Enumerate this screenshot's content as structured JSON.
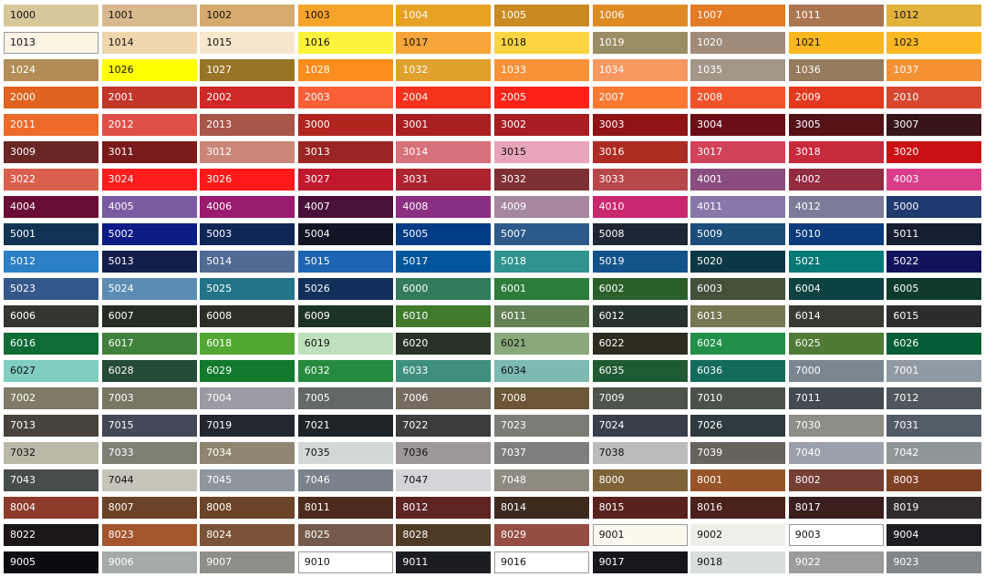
{
  "swatches": [
    {
      "code": "1000",
      "color": "#d6c89a",
      "text": "#111"
    },
    {
      "code": "1001",
      "color": "#d7b98d",
      "text": "#111"
    },
    {
      "code": "1002",
      "color": "#d5ab6c",
      "text": "#111"
    },
    {
      "code": "1003",
      "color": "#f6a32a",
      "text": "#111"
    },
    {
      "code": "1004",
      "color": "#e7a125",
      "text": "#fff"
    },
    {
      "code": "1005",
      "color": "#c98b22",
      "text": "#fff"
    },
    {
      "code": "1006",
      "color": "#e08a26",
      "text": "#fff"
    },
    {
      "code": "1007",
      "color": "#e27b24",
      "text": "#fff"
    },
    {
      "code": "1011",
      "color": "#a97650",
      "text": "#fff"
    },
    {
      "code": "1012",
      "color": "#e2b23b",
      "text": "#111"
    },
    {
      "code": "1013",
      "color": "#fbf4e4",
      "text": "#111",
      "border": true
    },
    {
      "code": "1014",
      "color": "#efd6ad",
      "text": "#111"
    },
    {
      "code": "1015",
      "color": "#f7e7cc",
      "text": "#111"
    },
    {
      "code": "1016",
      "color": "#fcf23e",
      "text": "#111"
    },
    {
      "code": "1017",
      "color": "#f6a53a",
      "text": "#111"
    },
    {
      "code": "1018",
      "color": "#fad443",
      "text": "#111"
    },
    {
      "code": "1019",
      "color": "#9a8d64",
      "text": "#fff"
    },
    {
      "code": "1020",
      "color": "#a08a79",
      "text": "#fff"
    },
    {
      "code": "1021",
      "color": "#fbb71f",
      "text": "#111"
    },
    {
      "code": "1023",
      "color": "#fbb823",
      "text": "#111"
    },
    {
      "code": "1024",
      "color": "#b38d55",
      "text": "#fff"
    },
    {
      "code": "1026",
      "color": "#ffff00",
      "text": "#111"
    },
    {
      "code": "1027",
      "color": "#987526",
      "text": "#fff"
    },
    {
      "code": "1028",
      "color": "#fb8d1c",
      "text": "#fff"
    },
    {
      "code": "1032",
      "color": "#e0a12c",
      "text": "#fff"
    },
    {
      "code": "1033",
      "color": "#f99138",
      "text": "#fff"
    },
    {
      "code": "1034",
      "color": "#f89861",
      "text": "#fff"
    },
    {
      "code": "1035",
      "color": "#a3978a",
      "text": "#fff"
    },
    {
      "code": "1036",
      "color": "#957a5c",
      "text": "#fff"
    },
    {
      "code": "1037",
      "color": "#f59133",
      "text": "#fff"
    },
    {
      "code": "2000",
      "color": "#e0631f",
      "text": "#fff"
    },
    {
      "code": "2001",
      "color": "#c2372a",
      "text": "#fff"
    },
    {
      "code": "2002",
      "color": "#cf2626",
      "text": "#fff"
    },
    {
      "code": "2003",
      "color": "#fa5f38",
      "text": "#fff"
    },
    {
      "code": "2004",
      "color": "#f5331c",
      "text": "#fff"
    },
    {
      "code": "2005",
      "color": "#fe2318",
      "text": "#fff"
    },
    {
      "code": "2007",
      "color": "#fd7932",
      "text": "#fff"
    },
    {
      "code": "2008",
      "color": "#f3532a",
      "text": "#fff"
    },
    {
      "code": "2009",
      "color": "#e3391f",
      "text": "#fff"
    },
    {
      "code": "2010",
      "color": "#d7472f",
      "text": "#fff"
    },
    {
      "code": "2011",
      "color": "#ee6a2b",
      "text": "#fff"
    },
    {
      "code": "2012",
      "color": "#df5049",
      "text": "#fff"
    },
    {
      "code": "2013",
      "color": "#a8554a",
      "text": "#fff"
    },
    {
      "code": "3000",
      "color": "#b12520",
      "text": "#fff"
    },
    {
      "code": "3001",
      "color": "#a81f22",
      "text": "#fff"
    },
    {
      "code": "3002",
      "color": "#a81d22",
      "text": "#fff"
    },
    {
      "code": "3003",
      "color": "#8e1416",
      "text": "#fff"
    },
    {
      "code": "3004",
      "color": "#6c0e18",
      "text": "#fff"
    },
    {
      "code": "3005",
      "color": "#561219",
      "text": "#fff"
    },
    {
      "code": "3007",
      "color": "#361417",
      "text": "#fff"
    },
    {
      "code": "3009",
      "color": "#6a2525",
      "text": "#fff"
    },
    {
      "code": "3011",
      "color": "#7b1a1b",
      "text": "#fff"
    },
    {
      "code": "3012",
      "color": "#ca8779",
      "text": "#fff"
    },
    {
      "code": "3013",
      "color": "#9a2522",
      "text": "#fff"
    },
    {
      "code": "3014",
      "color": "#d6707a",
      "text": "#fff"
    },
    {
      "code": "3015",
      "color": "#e8a4b8",
      "text": "#111"
    },
    {
      "code": "3016",
      "color": "#ad2b22",
      "text": "#fff"
    },
    {
      "code": "3017",
      "color": "#d14359",
      "text": "#fff"
    },
    {
      "code": "3018",
      "color": "#c72a3c",
      "text": "#fff"
    },
    {
      "code": "3020",
      "color": "#c91115",
      "text": "#fff"
    },
    {
      "code": "3022",
      "color": "#da5f4f",
      "text": "#fff"
    },
    {
      "code": "3024",
      "color": "#ff1d1d",
      "text": "#fff"
    },
    {
      "code": "3026",
      "color": "#ff1818",
      "text": "#fff"
    },
    {
      "code": "3027",
      "color": "#c1182e",
      "text": "#fff"
    },
    {
      "code": "3031",
      "color": "#ab2430",
      "text": "#fff"
    },
    {
      "code": "3032",
      "color": "#7e2f33",
      "text": "#fff"
    },
    {
      "code": "3033",
      "color": "#b7474a",
      "text": "#fff"
    },
    {
      "code": "4001",
      "color": "#8a4d7f",
      "text": "#fff"
    },
    {
      "code": "4002",
      "color": "#922c40",
      "text": "#fff"
    },
    {
      "code": "4003",
      "color": "#da3d89",
      "text": "#fff"
    },
    {
      "code": "4004",
      "color": "#6a0d34",
      "text": "#fff"
    },
    {
      "code": "4005",
      "color": "#7a5aa0",
      "text": "#fff"
    },
    {
      "code": "4006",
      "color": "#991a6e",
      "text": "#fff"
    },
    {
      "code": "4007",
      "color": "#49103b",
      "text": "#fff"
    },
    {
      "code": "4008",
      "color": "#8b2f82",
      "text": "#fff"
    },
    {
      "code": "4009",
      "color": "#a587a0",
      "text": "#fff"
    },
    {
      "code": "4010",
      "color": "#c7286e",
      "text": "#fff"
    },
    {
      "code": "4011",
      "color": "#8877a9",
      "text": "#fff"
    },
    {
      "code": "4012",
      "color": "#7c7c98",
      "text": "#fff"
    },
    {
      "code": "5000",
      "color": "#1f3a6e",
      "text": "#fff"
    },
    {
      "code": "5001",
      "color": "#123454",
      "text": "#fff"
    },
    {
      "code": "5002",
      "color": "#0d1b87",
      "text": "#fff"
    },
    {
      "code": "5003",
      "color": "#102756",
      "text": "#fff"
    },
    {
      "code": "5004",
      "color": "#131524",
      "text": "#fff"
    },
    {
      "code": "5005",
      "color": "#023b86",
      "text": "#fff"
    },
    {
      "code": "5007",
      "color": "#2e5a8b",
      "text": "#fff"
    },
    {
      "code": "5008",
      "color": "#1d2733",
      "text": "#fff"
    },
    {
      "code": "5009",
      "color": "#1b4d79",
      "text": "#fff"
    },
    {
      "code": "5010",
      "color": "#0b3b7c",
      "text": "#fff"
    },
    {
      "code": "5011",
      "color": "#161e31",
      "text": "#fff"
    },
    {
      "code": "5012",
      "color": "#2a7fc5",
      "text": "#fff"
    },
    {
      "code": "5013",
      "color": "#141e4c",
      "text": "#fff"
    },
    {
      "code": "5014",
      "color": "#516a94",
      "text": "#fff"
    },
    {
      "code": "5015",
      "color": "#1d65b2",
      "text": "#fff"
    },
    {
      "code": "5017",
      "color": "#00559b",
      "text": "#fff"
    },
    {
      "code": "5018",
      "color": "#30948c",
      "text": "#fff"
    },
    {
      "code": "5019",
      "color": "#11538a",
      "text": "#fff"
    },
    {
      "code": "5020",
      "color": "#0b3844",
      "text": "#fff"
    },
    {
      "code": "5021",
      "color": "#057a76",
      "text": "#fff"
    },
    {
      "code": "5022",
      "color": "#11125c",
      "text": "#fff"
    },
    {
      "code": "5023",
      "color": "#345889",
      "text": "#fff"
    },
    {
      "code": "5024",
      "color": "#5b8cb4",
      "text": "#fff"
    },
    {
      "code": "5025",
      "color": "#227488",
      "text": "#fff"
    },
    {
      "code": "5026",
      "color": "#13305a",
      "text": "#fff"
    },
    {
      "code": "6000",
      "color": "#327c5c",
      "text": "#fff"
    },
    {
      "code": "6001",
      "color": "#2c7c3a",
      "text": "#fff"
    },
    {
      "code": "6002",
      "color": "#2a5f2a",
      "text": "#fff"
    },
    {
      "code": "6003",
      "color": "#43503a",
      "text": "#fff"
    },
    {
      "code": "6004",
      "color": "#0d4240",
      "text": "#fff"
    },
    {
      "code": "6005",
      "color": "#0e3a2c",
      "text": "#fff"
    },
    {
      "code": "6006",
      "color": "#323530",
      "text": "#fff"
    },
    {
      "code": "6007",
      "color": "#242e22",
      "text": "#fff"
    },
    {
      "code": "6008",
      "color": "#2d2e25",
      "text": "#fff"
    },
    {
      "code": "6009",
      "color": "#1d3325",
      "text": "#fff"
    },
    {
      "code": "6010",
      "color": "#3f7a2d",
      "text": "#fff"
    },
    {
      "code": "6011",
      "color": "#638055",
      "text": "#fff"
    },
    {
      "code": "6012",
      "color": "#26322f",
      "text": "#fff"
    },
    {
      "code": "6013",
      "color": "#767652",
      "text": "#fff"
    },
    {
      "code": "6014",
      "color": "#393a31",
      "text": "#fff"
    },
    {
      "code": "6015",
      "color": "#2b2d2a",
      "text": "#fff"
    },
    {
      "code": "6016",
      "color": "#0e6c37",
      "text": "#fff"
    },
    {
      "code": "6017",
      "color": "#40813b",
      "text": "#fff"
    },
    {
      "code": "6018",
      "color": "#53a834",
      "text": "#fff"
    },
    {
      "code": "6019",
      "color": "#bfe0be",
      "text": "#111"
    },
    {
      "code": "6020",
      "color": "#283328",
      "text": "#fff"
    },
    {
      "code": "6021",
      "color": "#8aa97a",
      "text": "#111"
    },
    {
      "code": "6022",
      "color": "#2e2b1f",
      "text": "#fff"
    },
    {
      "code": "6024",
      "color": "#22904a",
      "text": "#fff"
    },
    {
      "code": "6025",
      "color": "#4e7a35",
      "text": "#fff"
    },
    {
      "code": "6026",
      "color": "#075d36",
      "text": "#fff"
    },
    {
      "code": "6027",
      "color": "#80cdc1",
      "text": "#111"
    },
    {
      "code": "6028",
      "color": "#254a35",
      "text": "#fff"
    },
    {
      "code": "6029",
      "color": "#127a2d",
      "text": "#fff"
    },
    {
      "code": "6032",
      "color": "#268b3e",
      "text": "#fff"
    },
    {
      "code": "6033",
      "color": "#3e907d",
      "text": "#fff"
    },
    {
      "code": "6034",
      "color": "#7cbab3",
      "text": "#111"
    },
    {
      "code": "6035",
      "color": "#1f5a34",
      "text": "#fff"
    },
    {
      "code": "6036",
      "color": "#146b5c",
      "text": "#fff"
    },
    {
      "code": "7000",
      "color": "#7a8791",
      "text": "#fff"
    },
    {
      "code": "7001",
      "color": "#8f9aa2",
      "text": "#fff"
    },
    {
      "code": "7002",
      "color": "#807b68",
      "text": "#fff"
    },
    {
      "code": "7003",
      "color": "#787766",
      "text": "#fff"
    },
    {
      "code": "7004",
      "color": "#9c9ba3",
      "text": "#fff"
    },
    {
      "code": "7005",
      "color": "#646868",
      "text": "#fff"
    },
    {
      "code": "7006",
      "color": "#756b5f",
      "text": "#fff"
    },
    {
      "code": "7008",
      "color": "#6b5635",
      "text": "#fff"
    },
    {
      "code": "7009",
      "color": "#4e544b",
      "text": "#fff"
    },
    {
      "code": "7010",
      "color": "#4d514c",
      "text": "#fff"
    },
    {
      "code": "7011",
      "color": "#434b51",
      "text": "#fff"
    },
    {
      "code": "7012",
      "color": "#4f575c",
      "text": "#fff"
    },
    {
      "code": "7013",
      "color": "#47433a",
      "text": "#fff"
    },
    {
      "code": "7015",
      "color": "#434856",
      "text": "#fff"
    },
    {
      "code": "7019",
      "color": "#222730",
      "text": "#fff"
    },
    {
      "code": "7021",
      "color": "#1f2428",
      "text": "#fff"
    },
    {
      "code": "7022",
      "color": "#3c3c3c",
      "text": "#fff"
    },
    {
      "code": "7023",
      "color": "#7a7c76",
      "text": "#fff"
    },
    {
      "code": "7024",
      "color": "#383f4a",
      "text": "#fff"
    },
    {
      "code": "7026",
      "color": "#2e3b3e",
      "text": "#fff"
    },
    {
      "code": "7030",
      "color": "#8e8d86",
      "text": "#fff"
    },
    {
      "code": "7031",
      "color": "#525d68",
      "text": "#fff"
    },
    {
      "code": "7032",
      "color": "#bab9a9",
      "text": "#111"
    },
    {
      "code": "7033",
      "color": "#7c8173",
      "text": "#fff"
    },
    {
      "code": "7034",
      "color": "#8e8670",
      "text": "#fff"
    },
    {
      "code": "7035",
      "color": "#d4d7d8",
      "text": "#111"
    },
    {
      "code": "7036",
      "color": "#9d969a",
      "text": "#111"
    },
    {
      "code": "7037",
      "color": "#7c7e80",
      "text": "#fff"
    },
    {
      "code": "7038",
      "color": "#babcb9",
      "text": "#111"
    },
    {
      "code": "7039",
      "color": "#66625c",
      "text": "#fff"
    },
    {
      "code": "7040",
      "color": "#9ba1aa",
      "text": "#fff"
    },
    {
      "code": "7042",
      "color": "#8f9699",
      "text": "#fff"
    },
    {
      "code": "7043",
      "color": "#464b4b",
      "text": "#fff"
    },
    {
      "code": "7044",
      "color": "#c6c3b9",
      "text": "#111"
    },
    {
      "code": "7045",
      "color": "#8e959c",
      "text": "#fff"
    },
    {
      "code": "7046",
      "color": "#7a838b",
      "text": "#fff"
    },
    {
      "code": "7047",
      "color": "#d5d5d9",
      "text": "#111"
    },
    {
      "code": "7048",
      "color": "#8e8a80",
      "text": "#fff"
    },
    {
      "code": "8000",
      "color": "#7e623a",
      "text": "#fff"
    },
    {
      "code": "8001",
      "color": "#965428",
      "text": "#fff"
    },
    {
      "code": "8002",
      "color": "#763f35",
      "text": "#fff"
    },
    {
      "code": "8003",
      "color": "#7e4125",
      "text": "#fff"
    },
    {
      "code": "8004",
      "color": "#8e3b2c",
      "text": "#fff"
    },
    {
      "code": "8007",
      "color": "#6d4327",
      "text": "#fff"
    },
    {
      "code": "8008",
      "color": "#6c4529",
      "text": "#fff"
    },
    {
      "code": "8011",
      "color": "#4d2b1f",
      "text": "#fff"
    },
    {
      "code": "8012",
      "color": "#5e2424",
      "text": "#fff"
    },
    {
      "code": "8014",
      "color": "#3d2b20",
      "text": "#fff"
    },
    {
      "code": "8015",
      "color": "#5a221f",
      "text": "#fff"
    },
    {
      "code": "8016",
      "color": "#4a211c",
      "text": "#fff"
    },
    {
      "code": "8017",
      "color": "#3a1f1d",
      "text": "#fff"
    },
    {
      "code": "8019",
      "color": "#302b2d",
      "text": "#fff"
    },
    {
      "code": "8022",
      "color": "#1a1517",
      "text": "#fff"
    },
    {
      "code": "8023",
      "color": "#a4552d",
      "text": "#fff"
    },
    {
      "code": "8024",
      "color": "#7a5338",
      "text": "#fff"
    },
    {
      "code": "8025",
      "color": "#735a4c",
      "text": "#fff"
    },
    {
      "code": "8028",
      "color": "#4f3a26",
      "text": "#fff"
    },
    {
      "code": "8029",
      "color": "#954d43",
      "text": "#fff"
    },
    {
      "code": "9001",
      "color": "#fbf8ee",
      "text": "#111",
      "border": true
    },
    {
      "code": "9002",
      "color": "#efeee8",
      "text": "#111"
    },
    {
      "code": "9003",
      "color": "#ffffff",
      "text": "#111",
      "border": true
    },
    {
      "code": "9004",
      "color": "#1d1e22",
      "text": "#fff"
    },
    {
      "code": "9005",
      "color": "#0b0c10",
      "text": "#fff"
    },
    {
      "code": "9006",
      "color": "#a5a9aa",
      "text": "#fff"
    },
    {
      "code": "9007",
      "color": "#8f8d89",
      "text": "#fff"
    },
    {
      "code": "9010",
      "color": "#ffffff",
      "text": "#111",
      "border": true
    },
    {
      "code": "9011",
      "color": "#1b1d23",
      "text": "#fff"
    },
    {
      "code": "9016",
      "color": "#ffffff",
      "text": "#111",
      "border": true
    },
    {
      "code": "9017",
      "color": "#16171b",
      "text": "#fff"
    },
    {
      "code": "9018",
      "color": "#d8ded9",
      "text": "#111"
    },
    {
      "code": "9022",
      "color": "#9c9c9e",
      "text": "#fff"
    },
    {
      "code": "9023",
      "color": "#838688",
      "text": "#fff"
    }
  ]
}
